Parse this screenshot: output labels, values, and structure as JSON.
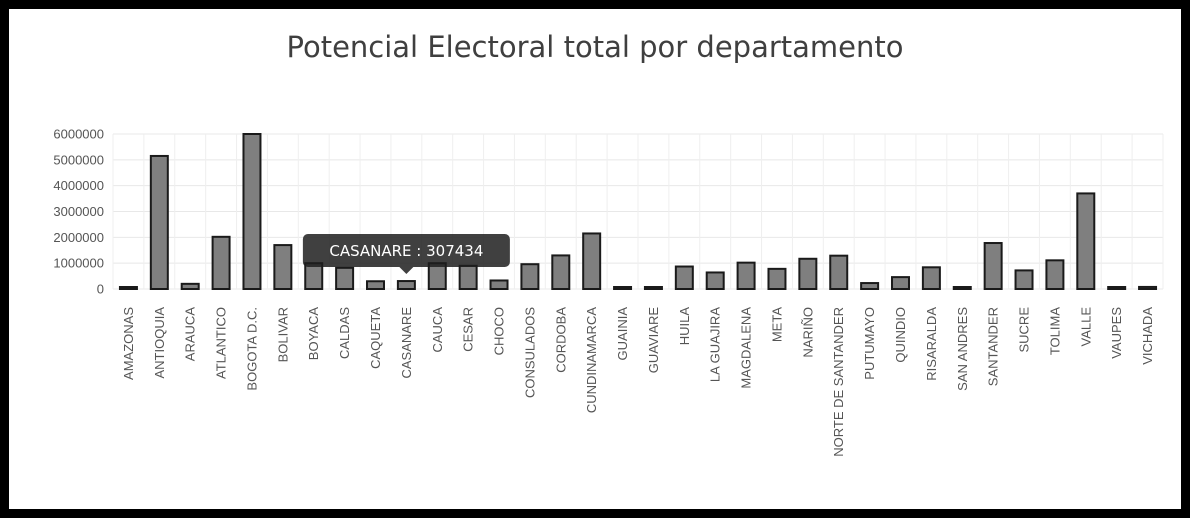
{
  "chart_data": {
    "type": "bar",
    "title": "Potencial Electoral total por departamento",
    "xlabel": "",
    "ylabel": "",
    "ylim": [
      0,
      6000000
    ],
    "yticks": [
      0,
      1000000,
      2000000,
      3000000,
      4000000,
      5000000,
      6000000
    ],
    "grid": true,
    "categories": [
      "AMAZONAS",
      "ANTIOQUIA",
      "ARAUCA",
      "ATLANTICO",
      "BOGOTA D.C.",
      "BOLIVAR",
      "BOYACA",
      "CALDAS",
      "CAQUETA",
      "CASANARE",
      "CAUCA",
      "CESAR",
      "CHOCO",
      "CONSULADOS",
      "CORDOBA",
      "CUNDINAMARCA",
      "GUAINIA",
      "GUAVIARE",
      "HUILA",
      "LA GUAJIRA",
      "MAGDALENA",
      "META",
      "NARIÑO",
      "NORTE DE SANTANDER",
      "PUTUMAYO",
      "QUINDIO",
      "RISARALDA",
      "SAN ANDRES",
      "SANTANDER",
      "SUCRE",
      "TOLIMA",
      "VALLE",
      "VAUPES",
      "VICHADA"
    ],
    "values": [
      60000,
      5150000,
      200000,
      2020000,
      6000000,
      1700000,
      1000000,
      820000,
      300000,
      307434,
      1000000,
      900000,
      330000,
      960000,
      1300000,
      2150000,
      30000,
      70000,
      870000,
      640000,
      1020000,
      780000,
      1170000,
      1290000,
      230000,
      460000,
      840000,
      60000,
      1780000,
      720000,
      1110000,
      3700000,
      30000,
      80000
    ],
    "bar_color": "#7f7f7f",
    "bar_edge_color": "#1a1a1a",
    "tooltip": {
      "category": "CASANARE",
      "value": "307434",
      "text": "CASANARE : 307434"
    }
  }
}
